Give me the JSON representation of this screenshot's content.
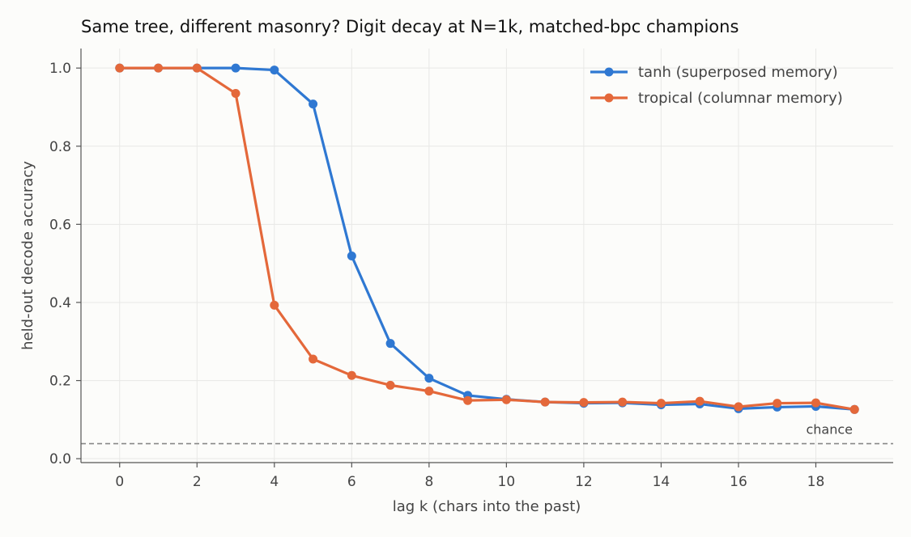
{
  "chart_data": {
    "type": "line",
    "title": "Same tree, different masonry? Digit decay at N=1k, matched-bpc champions",
    "xlabel": "lag k (chars into the past)",
    "ylabel": "held-out decode accuracy",
    "xlim": [
      -1,
      20
    ],
    "ylim": [
      -0.01,
      1.05
    ],
    "xticks": [
      0,
      2,
      4,
      6,
      8,
      10,
      12,
      14,
      16,
      18
    ],
    "yticks": [
      0.0,
      0.2,
      0.4,
      0.6,
      0.8,
      1.0
    ],
    "grid": true,
    "legend_position": "top-right",
    "x": [
      0,
      1,
      2,
      3,
      4,
      5,
      6,
      7,
      8,
      9,
      10,
      11,
      12,
      13,
      14,
      15,
      16,
      17,
      18,
      19
    ],
    "series": [
      {
        "name": "tanh (superposed memory)",
        "color": "#2f78d2",
        "values": [
          1.0,
          1.0,
          1.0,
          1.0,
          0.995,
          0.908,
          0.519,
          0.295,
          0.206,
          0.162,
          0.152,
          0.145,
          0.142,
          0.143,
          0.138,
          0.14,
          0.128,
          0.132,
          0.134,
          0.126
        ]
      },
      {
        "name": "tropical (columnar memory)",
        "color": "#e4683a",
        "values": [
          1.0,
          1.0,
          1.0,
          0.935,
          0.393,
          0.255,
          0.213,
          0.188,
          0.173,
          0.149,
          0.151,
          0.145,
          0.144,
          0.145,
          0.142,
          0.147,
          0.133,
          0.142,
          0.143,
          0.126
        ]
      }
    ],
    "reference_line": {
      "label": "chance",
      "y": 0.0385,
      "color": "#888888",
      "style": "dashed"
    }
  }
}
